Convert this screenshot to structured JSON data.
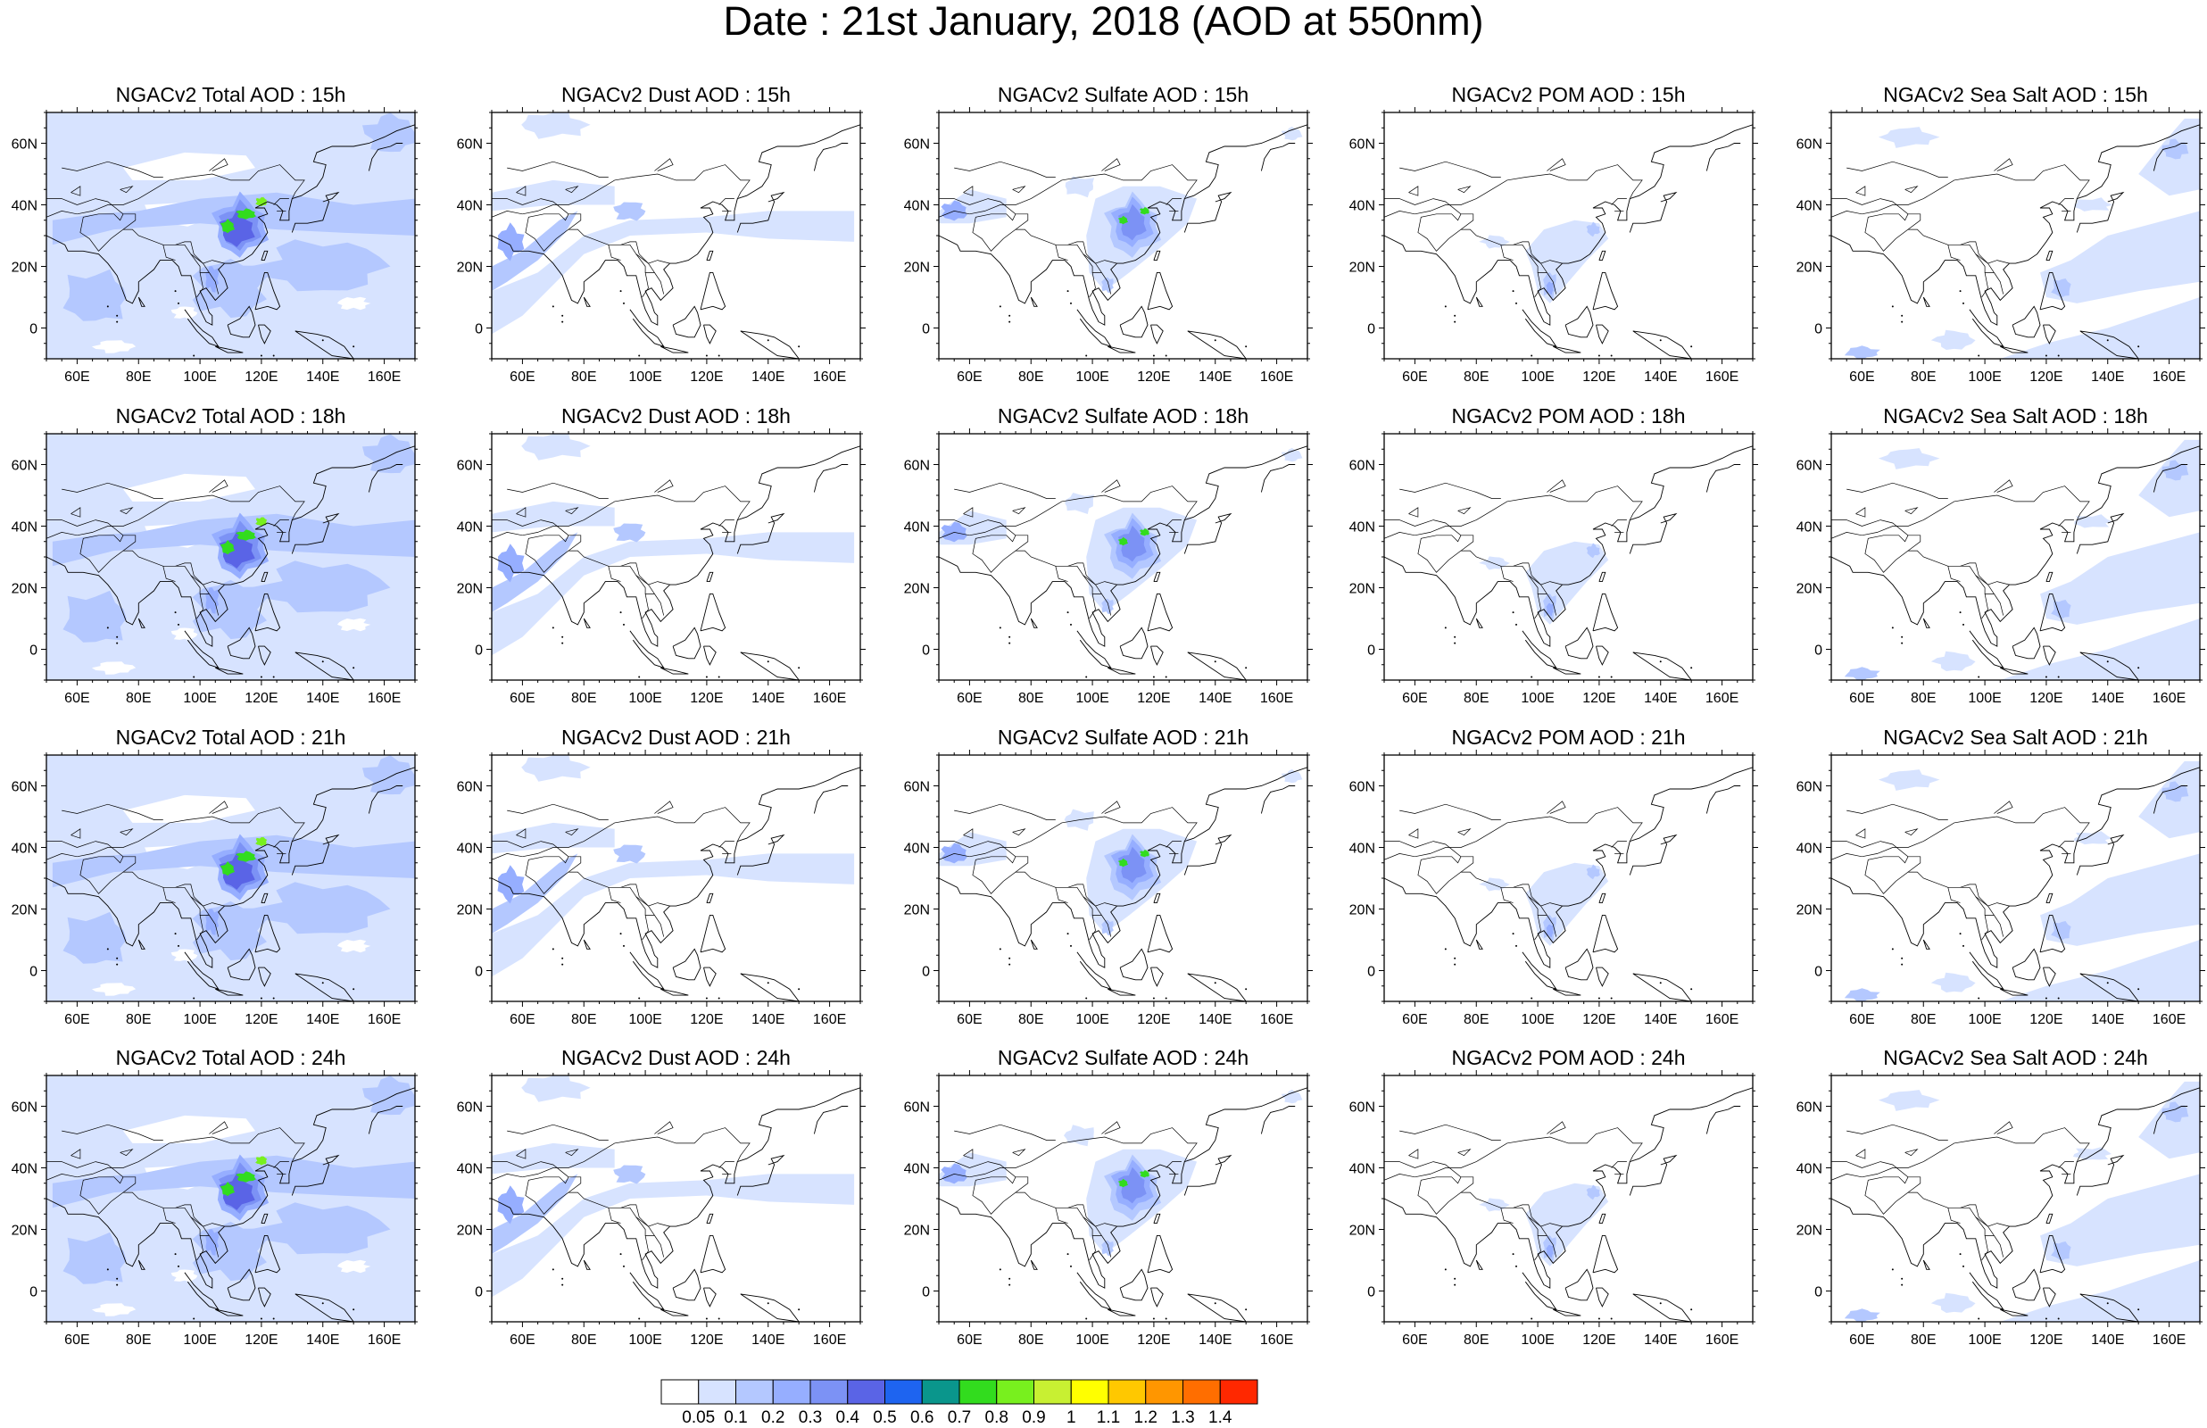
{
  "title": "Date : 21st January, 2018 (AOD at 550nm)",
  "axes": {
    "x_ticks": [
      "60E",
      "80E",
      "100E",
      "120E",
      "140E",
      "160E"
    ],
    "x_tick_values": [
      60,
      80,
      100,
      120,
      140,
      160
    ],
    "y_ticks": [
      "60N",
      "40N",
      "20N",
      "0"
    ],
    "y_tick_values": [
      60,
      40,
      20,
      0
    ],
    "lon_range": [
      50,
      170
    ],
    "lat_range": [
      -10,
      70
    ]
  },
  "rows": [
    "15h",
    "18h",
    "21h",
    "24h"
  ],
  "columns": [
    "total",
    "dust",
    "sulfate",
    "pom",
    "seasalt"
  ],
  "panels": [
    {
      "row": 0,
      "col": 0,
      "title": "NGACv2 Total AOD : 15h"
    },
    {
      "row": 0,
      "col": 1,
      "title": "NGACv2 Dust AOD : 15h"
    },
    {
      "row": 0,
      "col": 2,
      "title": "NGACv2 Sulfate AOD : 15h"
    },
    {
      "row": 0,
      "col": 3,
      "title": "NGACv2 POM AOD : 15h"
    },
    {
      "row": 0,
      "col": 4,
      "title": "NGACv2 Sea Salt AOD : 15h"
    },
    {
      "row": 1,
      "col": 0,
      "title": "NGACv2 Total AOD : 18h"
    },
    {
      "row": 1,
      "col": 1,
      "title": "NGACv2 Dust AOD : 18h"
    },
    {
      "row": 1,
      "col": 2,
      "title": "NGACv2 Sulfate AOD : 18h"
    },
    {
      "row": 1,
      "col": 3,
      "title": "NGACv2 POM AOD : 18h"
    },
    {
      "row": 1,
      "col": 4,
      "title": "NGACv2 Sea Salt AOD : 18h"
    },
    {
      "row": 2,
      "col": 0,
      "title": "NGACv2 Total AOD : 21h"
    },
    {
      "row": 2,
      "col": 1,
      "title": "NGACv2 Dust AOD : 21h"
    },
    {
      "row": 2,
      "col": 2,
      "title": "NGACv2 Sulfate AOD : 21h"
    },
    {
      "row": 2,
      "col": 3,
      "title": "NGACv2 POM AOD : 21h"
    },
    {
      "row": 2,
      "col": 4,
      "title": "NGACv2 Sea Salt AOD : 21h"
    },
    {
      "row": 3,
      "col": 0,
      "title": "NGACv2 Total AOD : 24h"
    },
    {
      "row": 3,
      "col": 1,
      "title": "NGACv2 Dust AOD : 24h"
    },
    {
      "row": 3,
      "col": 2,
      "title": "NGACv2 Sulfate AOD : 24h"
    },
    {
      "row": 3,
      "col": 3,
      "title": "NGACv2 POM AOD : 24h"
    },
    {
      "row": 3,
      "col": 4,
      "title": "NGACv2 Sea Salt  AOD : 24h"
    }
  ],
  "colorbar": {
    "labels": [
      "0.05",
      "0.1",
      "0.2",
      "0.3",
      "0.4",
      "0.5",
      "0.6",
      "0.7",
      "0.8",
      "0.9",
      "1",
      "1.1",
      "1.2",
      "1.3",
      "1.4"
    ],
    "colors": [
      "#ffffff",
      "#d7e3ff",
      "#b4c8ff",
      "#96aeff",
      "#7c92f5",
      "#5a64e6",
      "#1e64f0",
      "#0a968c",
      "#32dc1e",
      "#78f01e",
      "#c8f032",
      "#ffff00",
      "#ffc800",
      "#ff9600",
      "#ff6e00",
      "#ff2800"
    ]
  },
  "chart_data": {
    "type": "heatmap",
    "title": "Date : 21st January, 2018 (AOD at 550nm)",
    "variables": [
      "Total AOD",
      "Dust AOD",
      "Sulfate AOD",
      "POM AOD",
      "Sea Salt AOD"
    ],
    "times": [
      "15h",
      "18h",
      "21h",
      "24h"
    ],
    "lon_range": [
      50,
      170
    ],
    "lat_range": [
      -10,
      70
    ],
    "levels": [
      0.05,
      0.1,
      0.2,
      0.3,
      0.4,
      0.5,
      0.6,
      0.7,
      0.8,
      0.9,
      1,
      1.1,
      1.2,
      1.3,
      1.4
    ]
  }
}
